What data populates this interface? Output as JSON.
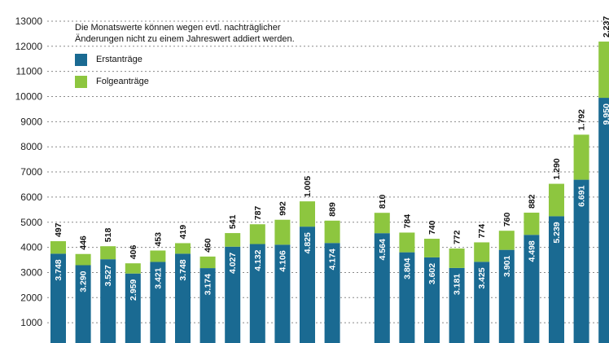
{
  "chart_data": {
    "type": "bar",
    "stacked": true,
    "note_lines": [
      "Die Monatswerte können wegen evtl. nachträglicher",
      "Änderungen nicht zu einem Jahreswert addiert werden."
    ],
    "series": [
      {
        "name": "Erstanträge",
        "color": "#1a6a92",
        "values": [
          3748,
          3290,
          3527,
          2959,
          3421,
          3748,
          3174,
          4027,
          4132,
          4106,
          4825,
          4174,
          null,
          4564,
          3804,
          3602,
          3181,
          3425,
          3901,
          4498,
          5239,
          6691,
          9950
        ]
      },
      {
        "name": "Folgeanträge",
        "color": "#8dc63f",
        "values": [
          497,
          446,
          518,
          406,
          453,
          419,
          460,
          541,
          787,
          992,
          1005,
          889,
          null,
          810,
          784,
          740,
          772,
          774,
          760,
          882,
          1290,
          1792,
          2237
        ]
      }
    ],
    "labels_first": [
      "3.748",
      "3.290",
      "3.527",
      "2.959",
      "3.421",
      "3.748",
      "3.174",
      "4.027",
      "4.132",
      "4.106",
      "4.825",
      "4.174",
      "",
      "4.564",
      "3.804",
      "3.602",
      "3.181",
      "3.425",
      "3.901",
      "4.498",
      "5.239",
      "6.691",
      "9.950"
    ],
    "labels_follow": [
      "497",
      "446",
      "518",
      "406",
      "453",
      "419",
      "460",
      "541",
      "787",
      "992",
      "1.005",
      "889",
      "",
      "810",
      "784",
      "740",
      "772",
      "774",
      "760",
      "882",
      "1.290",
      "1.792",
      "2.237"
    ],
    "y_ticks": [
      1000,
      2000,
      3000,
      4000,
      5000,
      6000,
      7000,
      8000,
      9000,
      10000,
      11000,
      12000,
      13000
    ],
    "y_tick_labels": [
      "1000",
      "2000",
      "3000",
      "4000",
      "5000",
      "6000",
      "7000",
      "8000",
      "9000",
      "10000",
      "11000",
      "12000",
      "13000"
    ],
    "ylim": [
      0,
      13000
    ],
    "grid": true
  }
}
